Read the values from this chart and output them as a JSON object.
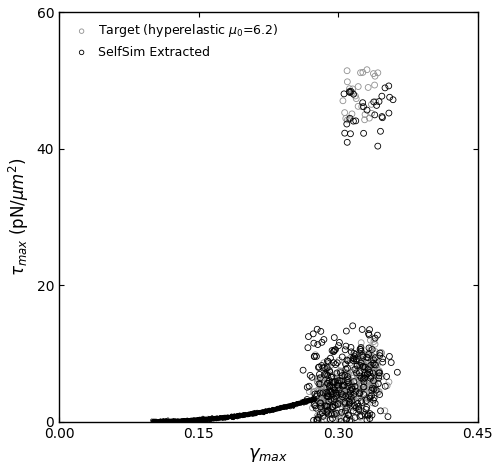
{
  "title": "",
  "xlabel": "$\\gamma_{max}$",
  "ylabel": "$\\tau_{max}$ (pN/$\\mu m^2$)",
  "xlim": [
    0,
    0.45
  ],
  "ylim": [
    0,
    60
  ],
  "xticks": [
    0,
    0.15,
    0.3,
    0.45
  ],
  "yticks": [
    0,
    20,
    40,
    60
  ],
  "legend_target": "Target (hyperelastic $\\mu_0$=6.2)",
  "legend_selfsim": "SelfSim Extracted",
  "target_color": "#909090",
  "selfsim_color": "#000000",
  "marker_size_lower": 3,
  "marker_size_upper": 18,
  "seed": 42,
  "n_lower": 1200,
  "n_upper": 300,
  "background_color": "#ffffff",
  "figsize": [
    5.0,
    4.71
  ],
  "dpi": 100
}
